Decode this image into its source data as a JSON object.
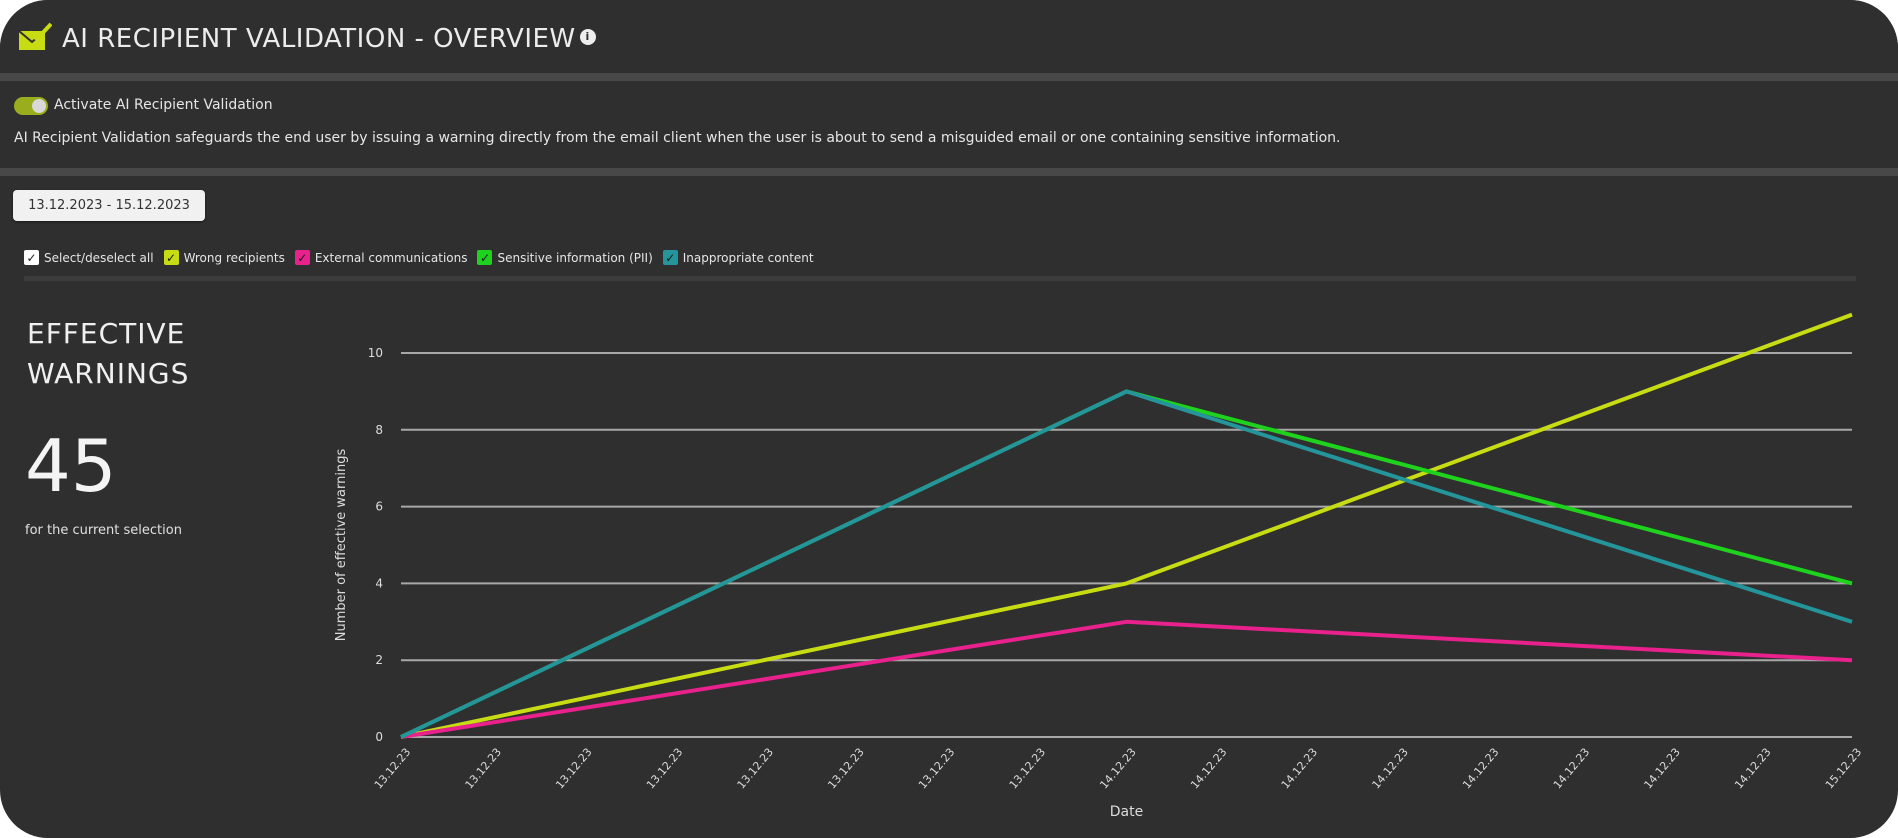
{
  "header": {
    "title": "AI RECIPIENT VALIDATION - OVERVIEW",
    "logo_icon": "mail-check-icon",
    "info_icon": "info-icon",
    "info_glyph": "i"
  },
  "activation": {
    "label": "Activate AI Recipient Validation",
    "enabled": true,
    "description": "AI Recipient Validation safeguards the end user by issuing a warning directly from the email client when the user is about to send a misguided email or one containing sensitive information."
  },
  "date_range": "13.12.2023 - 15.12.2023",
  "filters": [
    {
      "label": "Select/deselect all",
      "checked": true,
      "color": "#ffffff"
    },
    {
      "label": "Wrong recipients",
      "checked": true,
      "color": "#c8dc14"
    },
    {
      "label": "External communications",
      "checked": true,
      "color": "#e8218c"
    },
    {
      "label": "Sensitive information (PII)",
      "checked": true,
      "color": "#1ed21e"
    },
    {
      "label": "Inappropriate content",
      "checked": true,
      "color": "#23959b"
    }
  ],
  "summary": {
    "title_line1": "EFFECTIVE",
    "title_line2": "WARNINGS",
    "value": "45",
    "caption": "for the current selection"
  },
  "chart_data": {
    "type": "line",
    "xlabel": "Date",
    "ylabel": "Number of effective warnings",
    "ylim": [
      0,
      11
    ],
    "yticks": [
      0,
      2,
      4,
      6,
      8,
      10
    ],
    "grid": true,
    "categories": [
      "13.12.23",
      "13.12.23",
      "13.12.23",
      "13.12.23",
      "13.12.23",
      "13.12.23",
      "13.12.23",
      "13.12.23",
      "14.12.23",
      "14.12.23",
      "14.12.23",
      "14.12.23",
      "14.12.23",
      "14.12.23",
      "14.12.23",
      "14.12.23",
      "15.12.23"
    ],
    "series": [
      {
        "name": "Wrong recipients",
        "color": "#c8dc14",
        "values": [
          0,
          null,
          null,
          null,
          null,
          null,
          null,
          null,
          4,
          null,
          null,
          null,
          null,
          null,
          null,
          null,
          11
        ]
      },
      {
        "name": "External communications",
        "color": "#e8218c",
        "values": [
          0,
          null,
          null,
          null,
          null,
          null,
          null,
          null,
          3,
          null,
          null,
          null,
          null,
          null,
          null,
          null,
          2
        ]
      },
      {
        "name": "Sensitive information (PII)",
        "color": "#1ed21e",
        "values": [
          0,
          null,
          null,
          null,
          null,
          null,
          null,
          null,
          9,
          null,
          null,
          null,
          null,
          null,
          null,
          null,
          4
        ]
      },
      {
        "name": "Inappropriate content",
        "color": "#23959b",
        "values": [
          0,
          null,
          null,
          null,
          null,
          null,
          null,
          null,
          9,
          null,
          null,
          null,
          null,
          null,
          null,
          null,
          3
        ]
      }
    ]
  }
}
